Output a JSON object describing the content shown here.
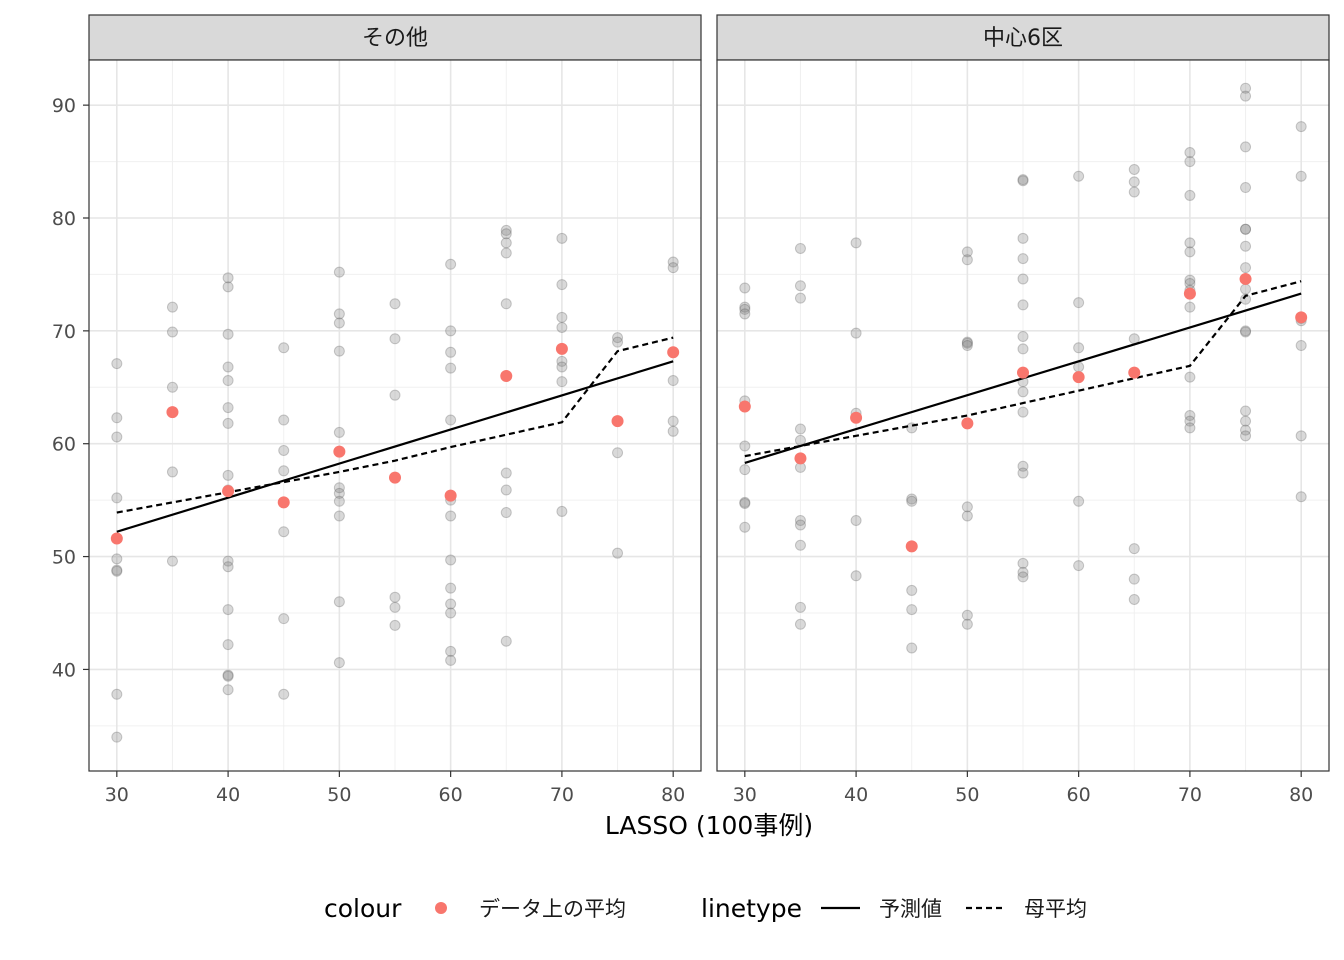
{
  "chart_data": {
    "type": "scatter",
    "xlabel": "LASSO (100事例)",
    "ylabel": "",
    "xlim": [
      27.5,
      82.5
    ],
    "ylim": [
      31,
      94
    ],
    "x_ticks": [
      30,
      40,
      50,
      60,
      70,
      80
    ],
    "y_ticks": [
      40,
      50,
      60,
      70,
      80,
      90
    ],
    "grid": true,
    "legend_position": "bottom",
    "legend": {
      "colour_title": "colour",
      "colour_label": "データ上の平均",
      "linetype_title": "linetype",
      "linetype_labels": [
        "予測値",
        "母平均"
      ]
    },
    "colors": {
      "mean": "#F8766D",
      "raw": "#808080",
      "line": "#000000",
      "strip_bg": "#d9d9d9"
    },
    "panels": [
      {
        "strip": "その他",
        "raw_points": [
          [
            30,
            67.1
          ],
          [
            30,
            62.3
          ],
          [
            30,
            60.6
          ],
          [
            30,
            55.2
          ],
          [
            30,
            49.8
          ],
          [
            30,
            48.8
          ],
          [
            30,
            48.7
          ],
          [
            30,
            37.8
          ],
          [
            30,
            34.0
          ],
          [
            35,
            72.1
          ],
          [
            35,
            69.9
          ],
          [
            35,
            65.0
          ],
          [
            35,
            57.5
          ],
          [
            35,
            49.6
          ],
          [
            40,
            74.7
          ],
          [
            40,
            73.9
          ],
          [
            40,
            69.7
          ],
          [
            40,
            66.8
          ],
          [
            40,
            65.6
          ],
          [
            40,
            63.2
          ],
          [
            40,
            61.8
          ],
          [
            40,
            57.2
          ],
          [
            40,
            55.9
          ],
          [
            40,
            49.6
          ],
          [
            40,
            49.1
          ],
          [
            40,
            45.3
          ],
          [
            40,
            42.2
          ],
          [
            40,
            39.5
          ],
          [
            40,
            39.4
          ],
          [
            40,
            38.2
          ],
          [
            45,
            68.5
          ],
          [
            45,
            62.1
          ],
          [
            45,
            59.4
          ],
          [
            45,
            57.6
          ],
          [
            45,
            52.2
          ],
          [
            45,
            44.5
          ],
          [
            45,
            37.8
          ],
          [
            50,
            75.2
          ],
          [
            50,
            71.5
          ],
          [
            50,
            70.7
          ],
          [
            50,
            68.2
          ],
          [
            50,
            61.0
          ],
          [
            50,
            56.1
          ],
          [
            50,
            55.6
          ],
          [
            50,
            54.9
          ],
          [
            50,
            53.6
          ],
          [
            50,
            46.0
          ],
          [
            50,
            40.6
          ],
          [
            55,
            72.4
          ],
          [
            55,
            69.3
          ],
          [
            55,
            64.3
          ],
          [
            55,
            46.4
          ],
          [
            55,
            45.5
          ],
          [
            55,
            43.9
          ],
          [
            60,
            75.9
          ],
          [
            60,
            70.0
          ],
          [
            60,
            68.1
          ],
          [
            60,
            66.7
          ],
          [
            60,
            62.1
          ],
          [
            60,
            55.0
          ],
          [
            60,
            53.6
          ],
          [
            60,
            49.7
          ],
          [
            60,
            47.2
          ],
          [
            60,
            45.8
          ],
          [
            60,
            45.0
          ],
          [
            60,
            41.6
          ],
          [
            60,
            40.8
          ],
          [
            65,
            78.9
          ],
          [
            65,
            78.6
          ],
          [
            65,
            77.8
          ],
          [
            65,
            76.9
          ],
          [
            65,
            72.4
          ],
          [
            65,
            57.4
          ],
          [
            65,
            55.9
          ],
          [
            65,
            53.9
          ],
          [
            65,
            42.5
          ],
          [
            70,
            78.2
          ],
          [
            70,
            74.1
          ],
          [
            70,
            71.2
          ],
          [
            70,
            70.3
          ],
          [
            70,
            68.4
          ],
          [
            70,
            67.3
          ],
          [
            70,
            66.8
          ],
          [
            70,
            65.5
          ],
          [
            70,
            54.0
          ],
          [
            75,
            69.4
          ],
          [
            75,
            69.0
          ],
          [
            75,
            62.0
          ],
          [
            75,
            59.2
          ],
          [
            75,
            50.3
          ],
          [
            80,
            76.1
          ],
          [
            80,
            75.6
          ],
          [
            80,
            65.6
          ],
          [
            80,
            62.0
          ],
          [
            80,
            61.1
          ]
        ],
        "mean_points": [
          [
            30,
            51.6
          ],
          [
            35,
            62.8
          ],
          [
            40,
            55.8
          ],
          [
            45,
            54.8
          ],
          [
            50,
            59.3
          ],
          [
            55,
            57.0
          ],
          [
            60,
            55.4
          ],
          [
            65,
            66.0
          ],
          [
            70,
            68.4
          ],
          [
            75,
            62.0
          ],
          [
            80,
            68.1
          ]
        ],
        "predicted": [
          [
            30,
            52.2
          ],
          [
            80,
            67.3
          ]
        ],
        "population_mean": [
          [
            30,
            53.9
          ],
          [
            35,
            54.8
          ],
          [
            40,
            55.7
          ],
          [
            45,
            56.6
          ],
          [
            50,
            57.5
          ],
          [
            55,
            58.5
          ],
          [
            60,
            59.7
          ],
          [
            65,
            60.8
          ],
          [
            70,
            61.9
          ],
          [
            75,
            68.2
          ],
          [
            80,
            69.4
          ]
        ]
      },
      {
        "strip": "中心6区",
        "raw_points": [
          [
            30,
            73.8
          ],
          [
            30,
            72.1
          ],
          [
            30,
            71.9
          ],
          [
            30,
            71.5
          ],
          [
            30,
            63.8
          ],
          [
            30,
            59.8
          ],
          [
            30,
            57.7
          ],
          [
            30,
            54.8
          ],
          [
            30,
            54.7
          ],
          [
            30,
            52.6
          ],
          [
            35,
            77.3
          ],
          [
            35,
            74.0
          ],
          [
            35,
            72.9
          ],
          [
            35,
            61.3
          ],
          [
            35,
            60.3
          ],
          [
            35,
            57.9
          ],
          [
            35,
            53.2
          ],
          [
            35,
            52.8
          ],
          [
            35,
            51.0
          ],
          [
            35,
            45.5
          ],
          [
            35,
            44.0
          ],
          [
            40,
            77.8
          ],
          [
            40,
            69.8
          ],
          [
            40,
            62.7
          ],
          [
            40,
            53.2
          ],
          [
            40,
            48.3
          ],
          [
            45,
            61.4
          ],
          [
            45,
            55.1
          ],
          [
            45,
            54.9
          ],
          [
            45,
            47.0
          ],
          [
            45,
            45.3
          ],
          [
            45,
            41.9
          ],
          [
            50,
            77.0
          ],
          [
            50,
            76.3
          ],
          [
            50,
            69.0
          ],
          [
            50,
            68.9
          ],
          [
            50,
            68.7
          ],
          [
            50,
            54.4
          ],
          [
            50,
            53.6
          ],
          [
            50,
            44.8
          ],
          [
            50,
            44.0
          ],
          [
            55,
            83.4
          ],
          [
            55,
            83.3
          ],
          [
            55,
            78.2
          ],
          [
            55,
            76.4
          ],
          [
            55,
            74.6
          ],
          [
            55,
            72.3
          ],
          [
            55,
            69.5
          ],
          [
            55,
            68.4
          ],
          [
            55,
            65.5
          ],
          [
            55,
            64.6
          ],
          [
            55,
            62.8
          ],
          [
            55,
            58.0
          ],
          [
            55,
            57.4
          ],
          [
            55,
            49.4
          ],
          [
            55,
            48.6
          ],
          [
            55,
            48.2
          ],
          [
            60,
            83.7
          ],
          [
            60,
            72.5
          ],
          [
            60,
            68.5
          ],
          [
            60,
            66.8
          ],
          [
            60,
            54.9
          ],
          [
            60,
            49.2
          ],
          [
            65,
            84.3
          ],
          [
            65,
            83.2
          ],
          [
            65,
            82.3
          ],
          [
            65,
            69.3
          ],
          [
            65,
            50.7
          ],
          [
            65,
            48.0
          ],
          [
            65,
            46.2
          ],
          [
            70,
            85.8
          ],
          [
            70,
            85.0
          ],
          [
            70,
            82.0
          ],
          [
            70,
            77.8
          ],
          [
            70,
            77.0
          ],
          [
            70,
            74.5
          ],
          [
            70,
            74.2
          ],
          [
            70,
            73.6
          ],
          [
            70,
            72.1
          ],
          [
            70,
            65.9
          ],
          [
            70,
            62.5
          ],
          [
            70,
            62.0
          ],
          [
            70,
            61.4
          ],
          [
            75,
            91.5
          ],
          [
            75,
            90.8
          ],
          [
            75,
            86.3
          ],
          [
            75,
            82.7
          ],
          [
            75,
            79.0
          ],
          [
            75,
            79.0
          ],
          [
            75,
            77.5
          ],
          [
            75,
            75.6
          ],
          [
            75,
            73.7
          ],
          [
            75,
            72.8
          ],
          [
            75,
            70.0
          ],
          [
            75,
            69.9
          ],
          [
            75,
            62.9
          ],
          [
            75,
            62.0
          ],
          [
            75,
            61.2
          ],
          [
            75,
            60.7
          ],
          [
            80,
            88.1
          ],
          [
            80,
            83.7
          ],
          [
            80,
            71.1
          ],
          [
            80,
            70.9
          ],
          [
            80,
            68.7
          ],
          [
            80,
            60.7
          ],
          [
            80,
            55.3
          ]
        ],
        "mean_points": [
          [
            30,
            63.3
          ],
          [
            35,
            58.7
          ],
          [
            40,
            62.3
          ],
          [
            45,
            50.9
          ],
          [
            50,
            61.8
          ],
          [
            55,
            66.3
          ],
          [
            60,
            65.9
          ],
          [
            65,
            66.3
          ],
          [
            70,
            73.3
          ],
          [
            75,
            74.6
          ],
          [
            80,
            71.2
          ]
        ],
        "predicted": [
          [
            30,
            58.3
          ],
          [
            80,
            73.3
          ]
        ],
        "population_mean": [
          [
            30,
            58.9
          ],
          [
            35,
            59.8
          ],
          [
            40,
            60.7
          ],
          [
            45,
            61.6
          ],
          [
            50,
            62.5
          ],
          [
            55,
            63.6
          ],
          [
            60,
            64.7
          ],
          [
            65,
            65.8
          ],
          [
            70,
            66.9
          ],
          [
            75,
            73.1
          ],
          [
            80,
            74.4
          ]
        ]
      }
    ]
  }
}
